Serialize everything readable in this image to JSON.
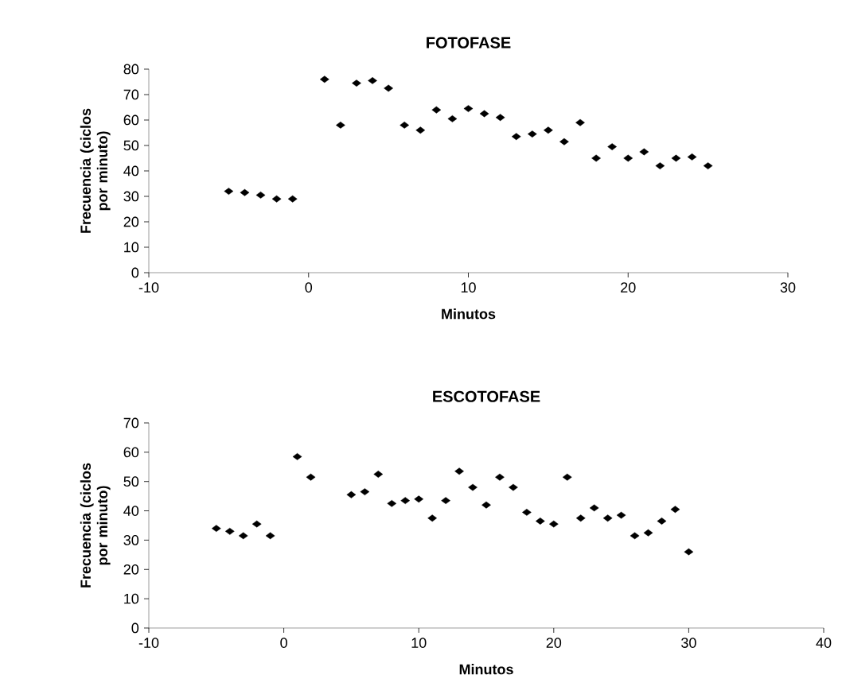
{
  "chart_data": [
    {
      "type": "scatter",
      "title": "FOTOFASE",
      "xlabel": "Minutos",
      "ylabel": "Frecuencia (ciclos por minuto)",
      "marker": "diamond",
      "grid": false,
      "x": [
        -5,
        -4,
        -3,
        -2,
        -1,
        1,
        2,
        3,
        4,
        5,
        6,
        7,
        8,
        9,
        10,
        11,
        12,
        13,
        14,
        15,
        16,
        17,
        18,
        19,
        20,
        21,
        22,
        23,
        24,
        25
      ],
      "series": [
        {
          "color": "#000000",
          "values": [
            32,
            31.5,
            30.5,
            29,
            29,
            76,
            58,
            74.5,
            75.5,
            72.5,
            58,
            56,
            64,
            60.5,
            64.5,
            62.5,
            61,
            53.5,
            54.5,
            56,
            51.5,
            59,
            45,
            49.5,
            45,
            47.5,
            42,
            45,
            45.5,
            42
          ]
        }
      ],
      "xlim": [
        -10,
        30
      ],
      "xticks": [
        -10,
        0,
        10,
        20,
        30
      ],
      "ylim": [
        0,
        80
      ],
      "yticks": [
        0,
        10,
        20,
        30,
        40,
        50,
        60,
        70,
        80
      ]
    },
    {
      "type": "scatter",
      "title": "ESCOTOFASE",
      "xlabel": "Minutos",
      "ylabel": "Frecuencia (ciclos por minuto)",
      "marker": "diamond",
      "grid": false,
      "x": [
        -5,
        -4,
        -3,
        -2,
        -1,
        1,
        2,
        5,
        6,
        7,
        8,
        9,
        10,
        11,
        12,
        13,
        14,
        15,
        16,
        17,
        18,
        19,
        20,
        21,
        22,
        23,
        24,
        25,
        26,
        27,
        28,
        29,
        30
      ],
      "series": [
        {
          "color": "#000000",
          "values": [
            34,
            33,
            31.5,
            35.5,
            31.5,
            58.5,
            51.5,
            45.5,
            46.5,
            52.5,
            42.5,
            43.5,
            44,
            37.5,
            43.5,
            53.5,
            48,
            42,
            51.5,
            48,
            39.5,
            36.5,
            35.5,
            51.5,
            37.5,
            41,
            37.5,
            38.5,
            31.5,
            32.5,
            36.5,
            40.5,
            26
          ]
        }
      ],
      "xlim": [
        -10,
        40
      ],
      "xticks": [
        -10,
        0,
        10,
        20,
        30,
        40
      ],
      "ylim": [
        0,
        70
      ],
      "yticks": [
        0,
        10,
        20,
        30,
        40,
        50,
        60,
        70
      ]
    }
  ]
}
